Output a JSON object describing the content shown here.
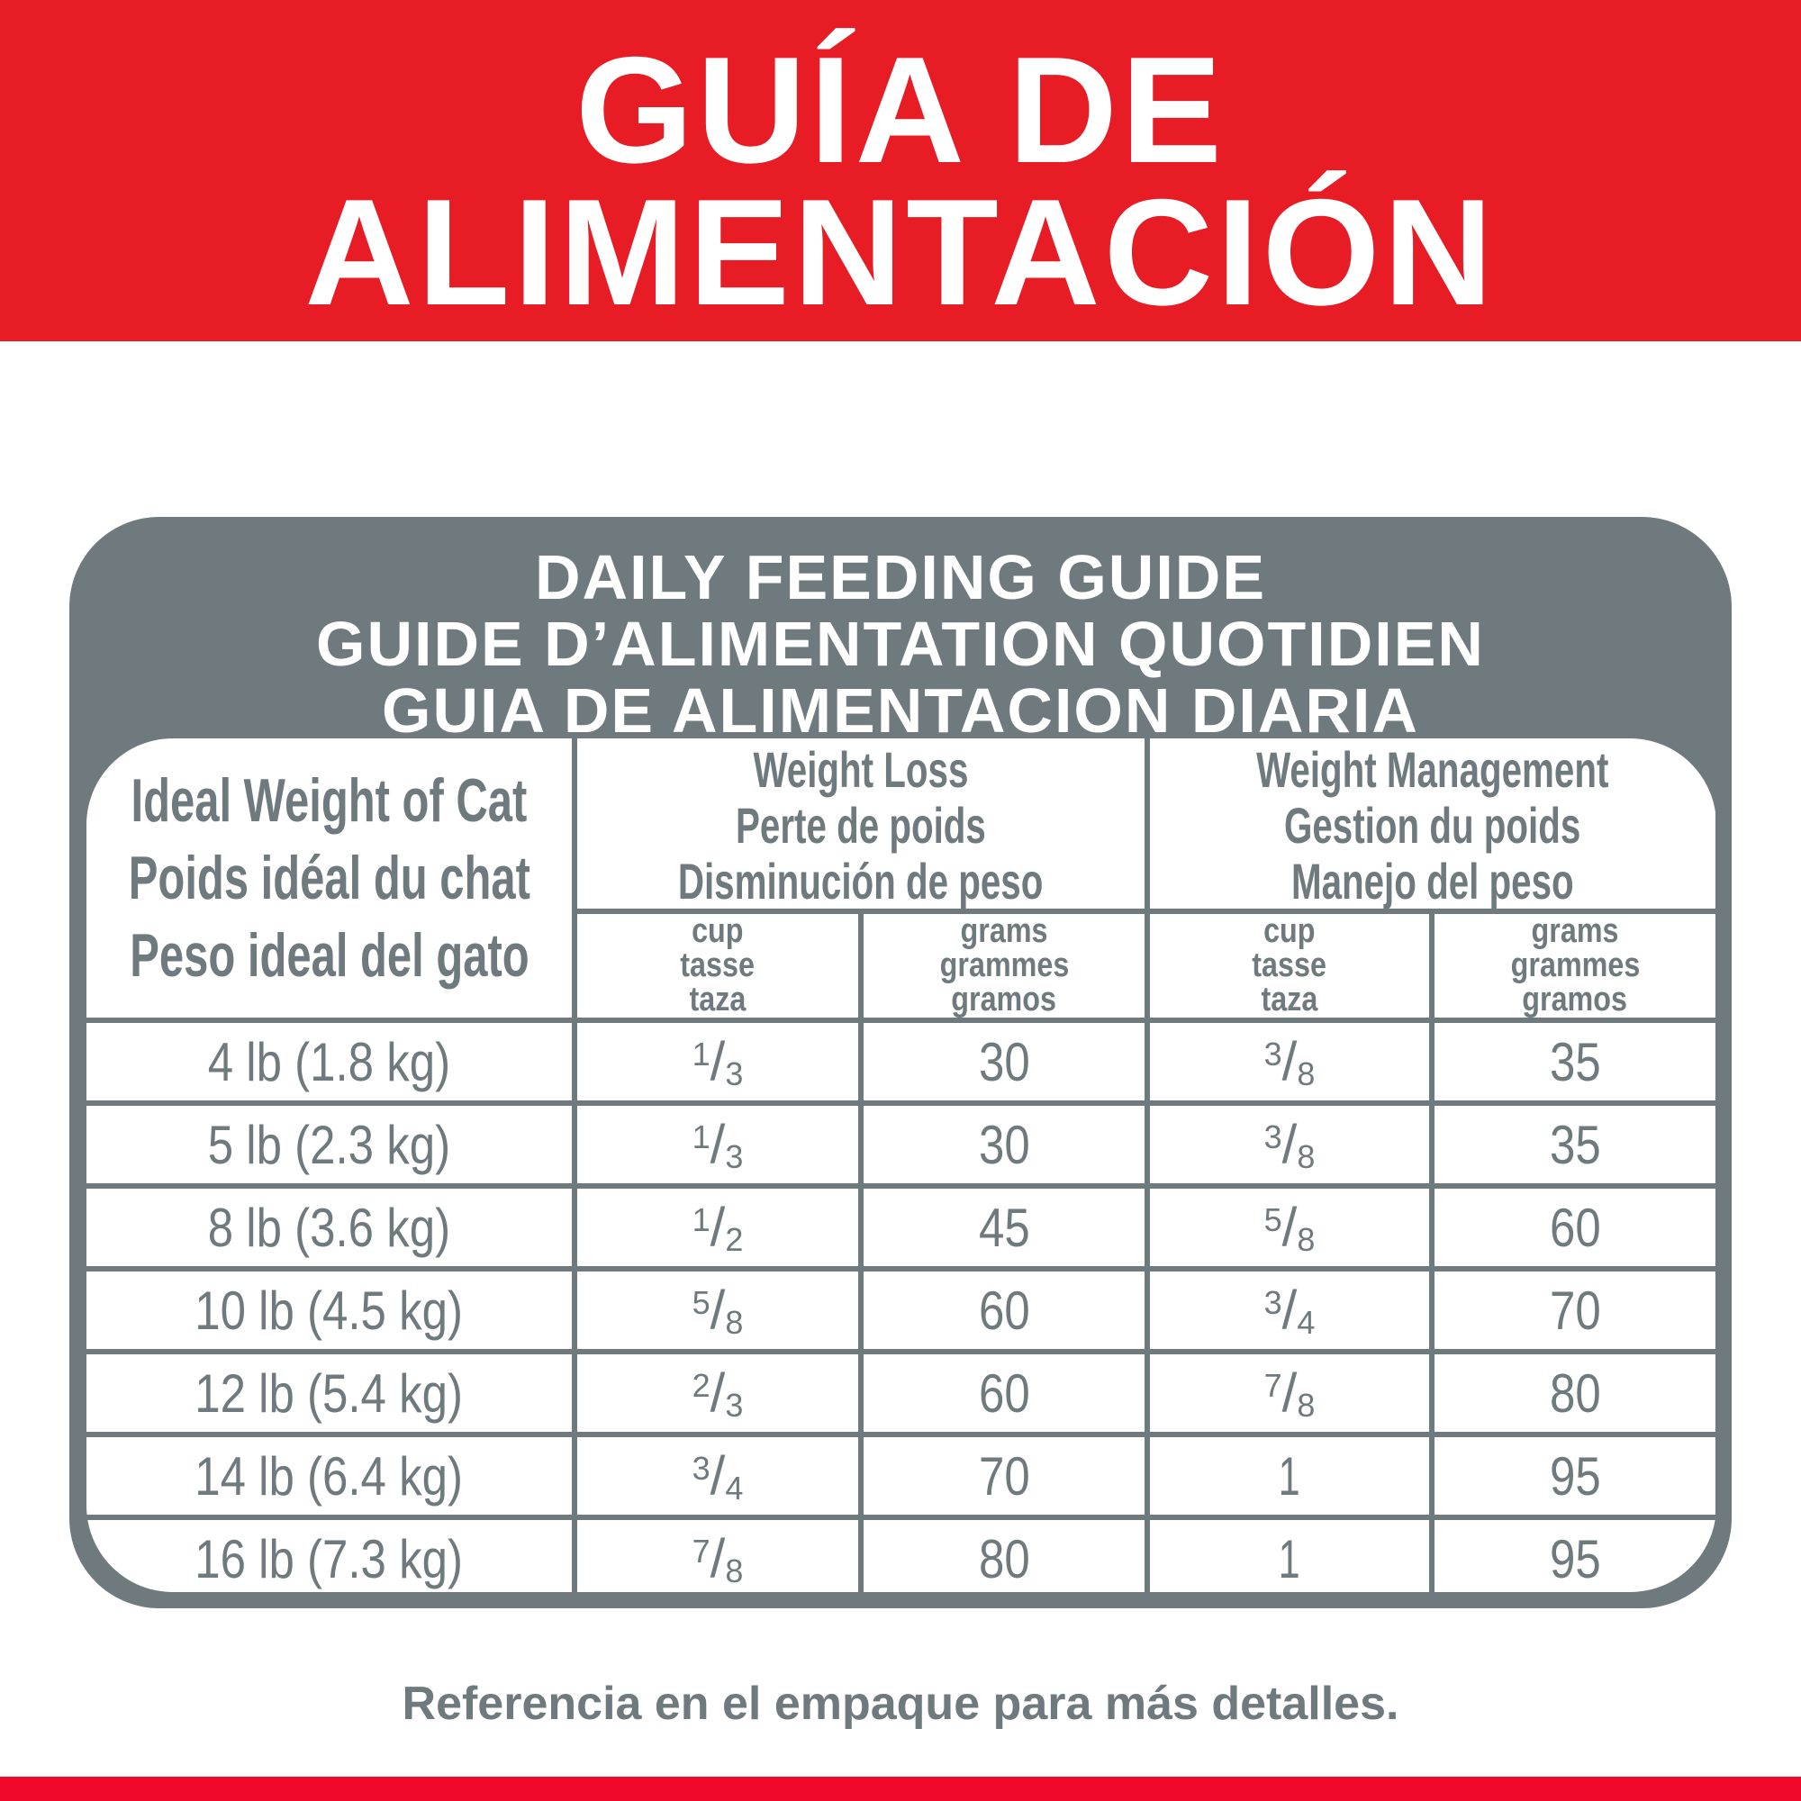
{
  "banner": {
    "line1": "GUÍA DE",
    "line2": "ALIMENTACIÓN",
    "color": "#e81c24"
  },
  "panel": {
    "title_en": "DAILY FEEDING GUIDE",
    "title_fr": "GUIDE D’ALIMENTATION QUOTIDIEN",
    "title_es": "GUIA DE ALIMENTACION DIARIA",
    "color": "#6f7a7e"
  },
  "table": {
    "col_weight": [
      "Ideal Weight of Cat",
      "Poids idéal du chat",
      "Peso ideal del gato"
    ],
    "col_loss": [
      "Weight Loss",
      "Perte de poids",
      "Disminución de peso"
    ],
    "col_mgmt": [
      "Weight Management",
      "Gestion du poids",
      "Manejo del peso"
    ],
    "sub_cup": [
      "cup",
      "tasse",
      "taza"
    ],
    "sub_grams": [
      "grams",
      "grammes",
      "gramos"
    ],
    "rows": [
      {
        "weight": "4 lb (1.8 kg)",
        "loss_cup": {
          "num": "1",
          "den": "3"
        },
        "loss_g": "30",
        "mgmt_cup": {
          "num": "3",
          "den": "8"
        },
        "mgmt_g": "35"
      },
      {
        "weight": "5 lb (2.3 kg)",
        "loss_cup": {
          "num": "1",
          "den": "3"
        },
        "loss_g": "30",
        "mgmt_cup": {
          "num": "3",
          "den": "8"
        },
        "mgmt_g": "35"
      },
      {
        "weight": "8 lb (3.6 kg)",
        "loss_cup": {
          "num": "1",
          "den": "2"
        },
        "loss_g": "45",
        "mgmt_cup": {
          "num": "5",
          "den": "8"
        },
        "mgmt_g": "60"
      },
      {
        "weight": "10 lb (4.5 kg)",
        "loss_cup": {
          "num": "5",
          "den": "8"
        },
        "loss_g": "60",
        "mgmt_cup": {
          "num": "3",
          "den": "4"
        },
        "mgmt_g": "70"
      },
      {
        "weight": "12 lb (5.4 kg)",
        "loss_cup": {
          "num": "2",
          "den": "3"
        },
        "loss_g": "60",
        "mgmt_cup": {
          "num": "7",
          "den": "8"
        },
        "mgmt_g": "80"
      },
      {
        "weight": "14 lb (6.4 kg)",
        "loss_cup": {
          "num": "3",
          "den": "4"
        },
        "loss_g": "70",
        "mgmt_cup": {
          "whole": "1"
        },
        "mgmt_g": "95"
      },
      {
        "weight": "16 lb (7.3 kg)",
        "loss_cup": {
          "num": "7",
          "den": "8"
        },
        "loss_g": "80",
        "mgmt_cup": {
          "whole": "1"
        },
        "mgmt_g": "95"
      }
    ]
  },
  "footer": "Referencia en el empaque para más detalles."
}
